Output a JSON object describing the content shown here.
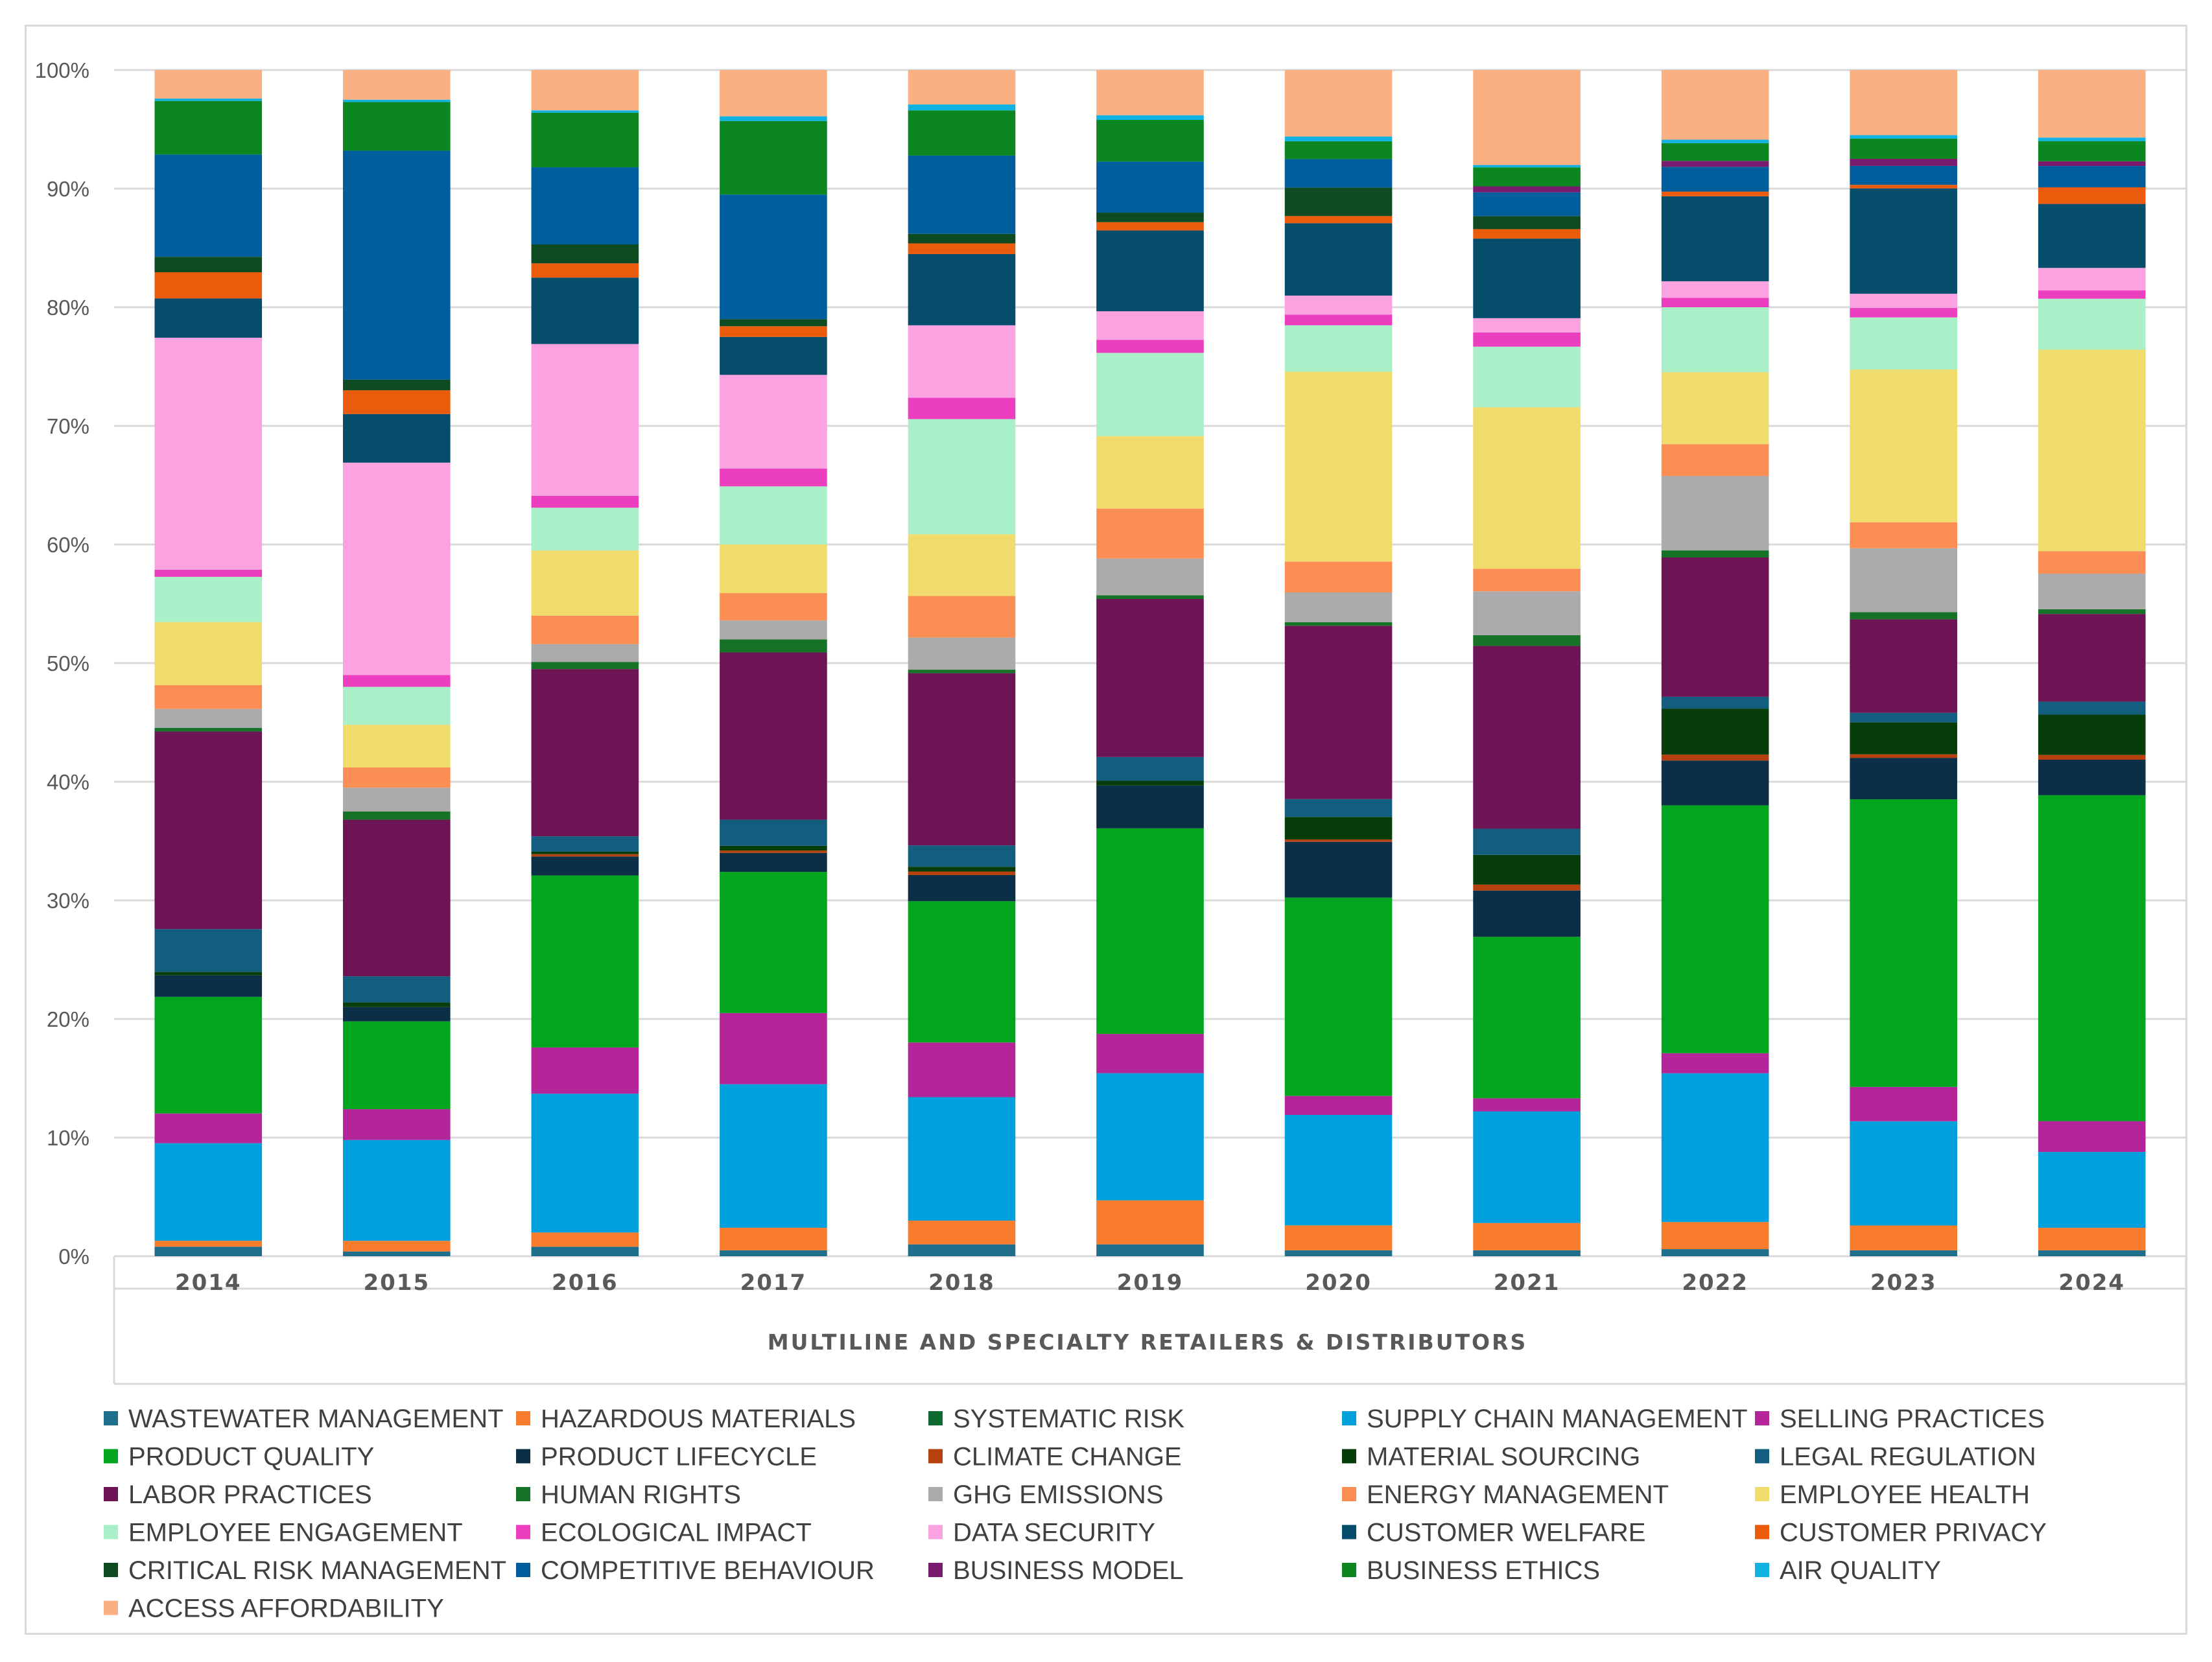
{
  "chart_data": {
    "type": "bar",
    "stacked": true,
    "normalized": true,
    "title": "",
    "xlabel": "MULTILINE AND SPECIALTY RETAILERS & DISTRIBUTORS",
    "ylabel": "",
    "ylim": [
      0,
      100
    ],
    "y_ticks": [
      "0%",
      "10%",
      "20%",
      "30%",
      "40%",
      "50%",
      "60%",
      "70%",
      "80%",
      "90%",
      "100%"
    ],
    "legend_position": "bottom",
    "grid": true,
    "categories": [
      "2014",
      "2015",
      "2016",
      "2017",
      "2018",
      "2019",
      "2020",
      "2021",
      "2022",
      "2023",
      "2024"
    ],
    "series": [
      {
        "name": "WASTEWATER MANAGEMENT",
        "color": "#1F6E8C",
        "values": [
          0.8,
          0.4,
          0.8,
          0.5,
          1.0,
          1.0,
          0.5,
          0.5,
          0.6,
          0.5,
          0.5
        ]
      },
      {
        "name": "HAZARDOUS MATERIALS",
        "color": "#F97B2C",
        "values": [
          0.5,
          0.9,
          1.2,
          1.9,
          2.0,
          3.7,
          2.1,
          2.3,
          2.3,
          2.1,
          1.9
        ]
      },
      {
        "name": "SYSTEMATIC RISK",
        "color": "#0E6B30",
        "values": [
          0.0,
          0.0,
          0.0,
          0.0,
          0.0,
          0.0,
          0.0,
          0.0,
          0.0,
          0.0,
          0.0
        ]
      },
      {
        "name": "SUPPLY CHAIN MANAGEMENT",
        "color": "#00A0DC",
        "values": [
          8.2,
          8.5,
          11.7,
          12.1,
          10.4,
          10.7,
          9.3,
          9.4,
          12.6,
          8.8,
          6.4
        ]
      },
      {
        "name": "SELLING PRACTICES",
        "color": "#B5259A",
        "values": [
          2.5,
          2.6,
          3.9,
          6.0,
          4.6,
          3.3,
          1.6,
          1.1,
          1.7,
          2.9,
          2.6
        ]
      },
      {
        "name": "PRODUCT QUALITY",
        "color": "#02A61E",
        "values": [
          9.8,
          7.4,
          14.5,
          11.9,
          11.9,
          17.3,
          16.7,
          13.6,
          21.0,
          24.3,
          27.5
        ]
      },
      {
        "name": "PRODUCT LIFECYCLE",
        "color": "#0C2F48",
        "values": [
          1.8,
          1.2,
          1.6,
          1.6,
          2.2,
          3.6,
          4.7,
          3.9,
          3.8,
          3.5,
          3.0
        ]
      },
      {
        "name": "CLIMATE CHANGE",
        "color": "#B7410E",
        "values": [
          0.0,
          0.0,
          0.2,
          0.2,
          0.3,
          0.0,
          0.2,
          0.5,
          0.5,
          0.3,
          0.4
        ]
      },
      {
        "name": "MATERIAL SOURCING",
        "color": "#063D0A",
        "values": [
          0.3,
          0.4,
          0.2,
          0.4,
          0.4,
          0.4,
          1.9,
          2.5,
          3.9,
          2.7,
          3.4
        ]
      },
      {
        "name": "LEGAL REGULATION",
        "color": "#135E7E",
        "values": [
          3.6,
          2.2,
          1.3,
          2.2,
          1.8,
          2.0,
          1.5,
          2.2,
          1.0,
          0.8,
          1.1
        ]
      },
      {
        "name": "LABOR PRACTICES",
        "color": "#6C1454",
        "values": [
          16.6,
          13.2,
          14.1,
          14.1,
          14.5,
          13.3,
          14.6,
          15.4,
          11.8,
          7.9,
          7.4
        ]
      },
      {
        "name": "HUMAN RIGHTS",
        "color": "#167226",
        "values": [
          0.3,
          0.7,
          0.6,
          1.1,
          0.3,
          0.3,
          0.3,
          0.9,
          0.6,
          0.6,
          0.4
        ]
      },
      {
        "name": "GHG EMISSIONS",
        "color": "#ABABAB",
        "values": [
          1.6,
          2.0,
          1.5,
          1.6,
          2.7,
          3.1,
          2.5,
          3.7,
          6.3,
          5.4,
          3.0
        ]
      },
      {
        "name": "ENERGY MANAGEMENT",
        "color": "#FA8E55",
        "values": [
          2.0,
          1.7,
          2.4,
          2.3,
          3.5,
          4.2,
          2.6,
          1.9,
          2.7,
          2.2,
          1.9
        ]
      },
      {
        "name": "EMPLOYEE HEALTH",
        "color": "#F0DC6C",
        "values": [
          5.3,
          3.6,
          5.5,
          4.1,
          5.2,
          6.1,
          16.0,
          13.6,
          6.1,
          12.9,
          17.0
        ]
      },
      {
        "name": "EMPLOYEE ENGAGEMENT",
        "color": "#A9F0C8",
        "values": [
          3.8,
          3.2,
          3.6,
          4.9,
          9.7,
          7.0,
          3.9,
          5.1,
          5.5,
          4.4,
          4.3
        ]
      },
      {
        "name": "ECOLOGICAL IMPACT",
        "color": "#EC3FBF",
        "values": [
          0.6,
          1.0,
          1.0,
          1.5,
          1.8,
          1.1,
          0.9,
          1.2,
          0.8,
          0.8,
          0.7
        ]
      },
      {
        "name": "DATA SECURITY",
        "color": "#FBA2E1",
        "values": [
          19.5,
          17.9,
          12.8,
          7.9,
          6.1,
          2.4,
          1.6,
          1.2,
          1.4,
          1.2,
          1.9
        ]
      },
      {
        "name": "CUSTOMER WELFARE",
        "color": "#064D6C",
        "values": [
          3.3,
          4.1,
          5.6,
          3.2,
          6.0,
          6.8,
          6.1,
          6.7,
          7.2,
          8.9,
          5.4
        ]
      },
      {
        "name": "CUSTOMER PRIVACY",
        "color": "#EA5B0C",
        "values": [
          2.2,
          2.0,
          1.2,
          0.9,
          0.9,
          0.7,
          0.6,
          0.8,
          0.4,
          0.3,
          1.4
        ]
      },
      {
        "name": "CRITICAL RISK MANAGEMENT",
        "color": "#0E4A22",
        "values": [
          1.3,
          0.9,
          1.6,
          0.6,
          0.8,
          0.8,
          2.4,
          1.1,
          0.0,
          0.0,
          0.0
        ]
      },
      {
        "name": "COMPETITIVE BEHAVIOUR",
        "color": "#005E9C",
        "values": [
          8.6,
          19.3,
          6.5,
          10.5,
          6.6,
          4.3,
          2.4,
          2.0,
          2.1,
          1.6,
          1.8
        ]
      },
      {
        "name": "BUSINESS MODEL",
        "color": "#7B1B70",
        "values": [
          0.0,
          0.0,
          0.0,
          0.0,
          0.0,
          0.0,
          0.0,
          0.5,
          0.5,
          0.6,
          0.4
        ]
      },
      {
        "name": "BUSINESS ETHICS",
        "color": "#0B8620",
        "values": [
          4.5,
          4.1,
          4.6,
          6.2,
          3.8,
          3.5,
          1.5,
          1.6,
          1.5,
          1.7,
          1.7
        ]
      },
      {
        "name": "AIR QUALITY",
        "color": "#0FB2E0",
        "values": [
          0.2,
          0.2,
          0.2,
          0.4,
          0.5,
          0.4,
          0.4,
          0.2,
          0.3,
          0.3,
          0.3
        ]
      },
      {
        "name": "ACCESS AFFORDABILITY",
        "color": "#FBB083",
        "values": [
          2.4,
          2.5,
          3.4,
          3.9,
          2.9,
          3.8,
          5.6,
          8.0,
          5.9,
          5.5,
          5.7
        ]
      }
    ]
  }
}
